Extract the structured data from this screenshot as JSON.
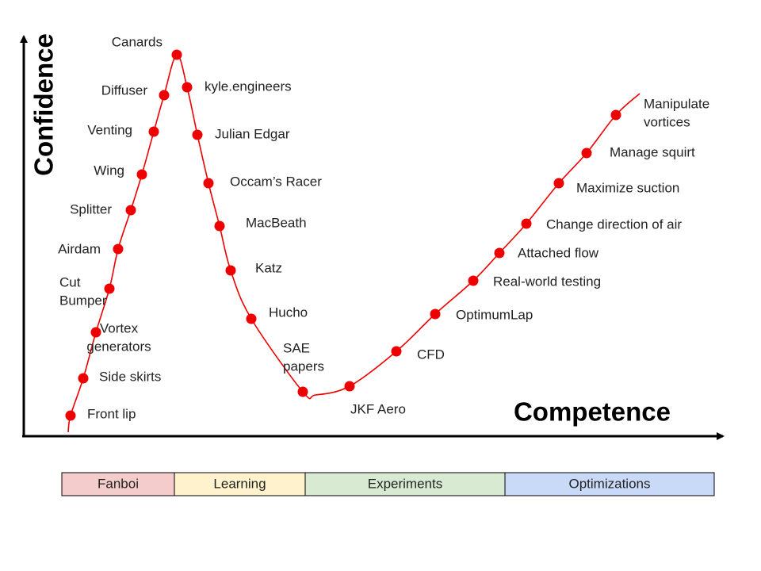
{
  "axes": {
    "y_label": "Confidence",
    "x_label": "Competence"
  },
  "points": [
    {
      "label": [
        "Front lip"
      ]
    },
    {
      "label": [
        "Side skirts"
      ]
    },
    {
      "label": [
        "Vortex",
        "generators"
      ]
    },
    {
      "label": [
        "Cut",
        "Bumper"
      ]
    },
    {
      "label": [
        "Airdam"
      ]
    },
    {
      "label": [
        "Splitter"
      ]
    },
    {
      "label": [
        "Wing"
      ]
    },
    {
      "label": [
        "Venting"
      ]
    },
    {
      "label": [
        "Diffuser"
      ]
    },
    {
      "label": [
        "Canards"
      ]
    },
    {
      "label": [
        "kyle.engineers"
      ]
    },
    {
      "label": [
        "Julian Edgar"
      ]
    },
    {
      "label": [
        "Occam’s Racer"
      ]
    },
    {
      "label": [
        "MacBeath"
      ]
    },
    {
      "label": [
        "Katz"
      ]
    },
    {
      "label": [
        "Hucho"
      ]
    },
    {
      "label": [
        "SAE",
        "papers"
      ]
    },
    {
      "label": [
        "JKF Aero"
      ]
    },
    {
      "label": [
        "CFD"
      ]
    },
    {
      "label": [
        "OptimumLap"
      ]
    },
    {
      "label": [
        "Real-world testing"
      ]
    },
    {
      "label": [
        "Attached flow"
      ]
    },
    {
      "label": [
        "Change direction of air"
      ]
    },
    {
      "label": [
        "Maximize suction"
      ]
    },
    {
      "label": [
        "Manage squirt"
      ]
    },
    {
      "label": [
        "Manipulate",
        "vortices"
      ]
    }
  ],
  "phases": [
    {
      "label": "Fanboi",
      "color": "#f4cccc"
    },
    {
      "label": "Learning",
      "color": "#fff2cc"
    },
    {
      "label": "Experiments",
      "color": "#d9ead3"
    },
    {
      "label": "Optimizations",
      "color": "#c9daf8"
    }
  ]
}
